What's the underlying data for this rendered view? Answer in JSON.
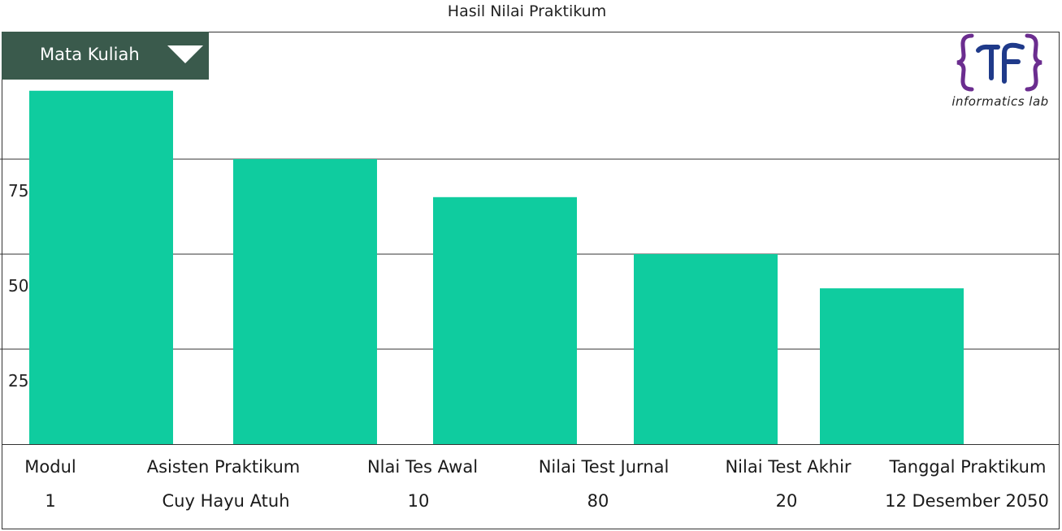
{
  "page_title": "Hasil Nilai Praktikum",
  "dropdown": {
    "label": "Mata Kuliah",
    "icon": "triangle-down-icon"
  },
  "logo": {
    "text": "informatics lab",
    "colors": {
      "primary": "#1f3a8a",
      "bracket": "#6b2d8f"
    }
  },
  "colors": {
    "bar": "#0fcc9f",
    "dropdown_bg": "#3a5a4c"
  },
  "chart_data": {
    "type": "bar",
    "title": "",
    "xlabel": "",
    "ylabel": "",
    "categories": [
      "",
      "",
      "",
      "",
      ""
    ],
    "values": [
      93,
      75,
      65,
      50,
      41
    ],
    "ylim": [
      0,
      100
    ],
    "yticks": [
      "25",
      "50",
      "75"
    ],
    "grid": true,
    "legend": "none"
  },
  "info": {
    "modul": {
      "label": "Modul",
      "value": "1"
    },
    "asisten": {
      "label": "Asisten Praktikum",
      "value": "Cuy Hayu Atuh"
    },
    "tes_awal": {
      "label": "Nlai Tes Awal",
      "value": "10"
    },
    "test_jurnal": {
      "label": "Nilai Test Jurnal",
      "value": "80"
    },
    "test_akhir": {
      "label": "Nilai Test Akhir",
      "value": "20"
    },
    "tanggal": {
      "label": "Tanggal Praktikum",
      "value": "12 Desember 2050"
    }
  }
}
